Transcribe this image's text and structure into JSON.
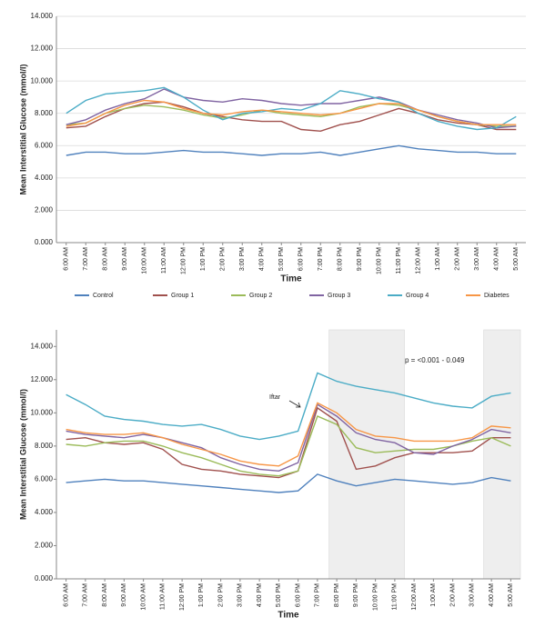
{
  "chart_data": [
    {
      "type": "line",
      "ylabel": "Mean Interstitial Glucose (mmol/l)",
      "xlabel": "Time",
      "categories": [
        "6:00 AM",
        "7:00 AM",
        "8:00 AM",
        "9:00 AM",
        "10:00 AM",
        "11:00 AM",
        "12:00 PM",
        "1:00 PM",
        "2:00 PM",
        "3:00 PM",
        "4:00 PM",
        "5:00 PM",
        "6:00 PM",
        "7:00 PM",
        "8:00 PM",
        "9:00 PM",
        "10:00 PM",
        "11:00 PM",
        "12:00 AM",
        "1:00 AM",
        "2:00 AM",
        "3:00 AM",
        "4:00 AM",
        "5:00 AM"
      ],
      "ylim": [
        0,
        14
      ],
      "yticks": [
        {
          "value": 0,
          "label": "0.000"
        },
        {
          "value": 2,
          "label": "2.000"
        },
        {
          "value": 4,
          "label": "4.000"
        },
        {
          "value": 6,
          "label": "6.000"
        },
        {
          "value": 8,
          "label": "8.000"
        },
        {
          "value": 10,
          "label": "10.000"
        },
        {
          "value": 12,
          "label": "12.000"
        },
        {
          "value": 14,
          "label": "14.000"
        }
      ],
      "grid": true,
      "legend": "bottom",
      "series": [
        {
          "name": "Control",
          "color": "#4f81bd",
          "values": [
            5.4,
            5.6,
            5.6,
            5.5,
            5.5,
            5.6,
            5.7,
            5.6,
            5.6,
            5.5,
            5.4,
            5.5,
            5.5,
            5.6,
            5.4,
            5.6,
            5.8,
            6.0,
            5.8,
            5.7,
            5.6,
            5.6,
            5.5,
            5.5
          ]
        },
        {
          "name": "Group 1",
          "color": "#a0504d",
          "values": [
            7.1,
            7.2,
            7.8,
            8.3,
            8.6,
            8.7,
            8.4,
            8.0,
            7.8,
            7.6,
            7.5,
            7.5,
            7.0,
            6.9,
            7.3,
            7.5,
            7.9,
            8.3,
            8.0,
            7.6,
            7.4,
            7.3,
            7.0,
            7.0
          ]
        },
        {
          "name": "Group 2",
          "color": "#9bbb59",
          "values": [
            7.3,
            7.4,
            8.0,
            8.3,
            8.5,
            8.4,
            8.2,
            7.9,
            7.7,
            7.9,
            8.2,
            8.0,
            7.9,
            7.8,
            8.0,
            8.4,
            8.6,
            8.5,
            8.2,
            7.8,
            7.5,
            7.3,
            7.2,
            7.2
          ]
        },
        {
          "name": "Group 3",
          "color": "#8064a2",
          "values": [
            7.3,
            7.6,
            8.2,
            8.6,
            8.9,
            9.5,
            9.0,
            8.8,
            8.7,
            8.9,
            8.8,
            8.6,
            8.5,
            8.6,
            8.6,
            8.8,
            9.0,
            8.7,
            8.2,
            7.9,
            7.6,
            7.4,
            7.1,
            7.2
          ]
        },
        {
          "name": "Group 4",
          "color": "#4bacc6",
          "values": [
            8.0,
            8.8,
            9.2,
            9.3,
            9.4,
            9.6,
            9.0,
            8.2,
            7.6,
            8.0,
            8.1,
            8.3,
            8.2,
            8.6,
            9.4,
            9.2,
            8.9,
            8.7,
            8.0,
            7.5,
            7.2,
            7.0,
            7.1,
            7.8
          ]
        },
        {
          "name": "Diabetes",
          "color": "#f79646",
          "values": [
            7.2,
            7.4,
            8.0,
            8.5,
            8.8,
            8.7,
            8.3,
            8.0,
            7.9,
            8.1,
            8.2,
            8.1,
            8.0,
            7.9,
            8.0,
            8.3,
            8.6,
            8.6,
            8.2,
            7.8,
            7.5,
            7.3,
            7.3,
            7.3
          ]
        }
      ]
    },
    {
      "type": "line",
      "ylabel": "Mean Interstitial Glucose (mmol/l)",
      "xlabel": "Time",
      "categories": [
        "6:00 AM",
        "7:00 AM",
        "8:00 AM",
        "9:00 AM",
        "10:00 AM",
        "11:00 AM",
        "12:00 PM",
        "1:00 PM",
        "2:00 PM",
        "3:00 PM",
        "4:00 PM",
        "5:00 PM",
        "6:00 PM",
        "7:00 PM",
        "8:00 PM",
        "9:00 PM",
        "10:00 PM",
        "11:00 PM",
        "12:00 AM",
        "1:00 AM",
        "2:00 AM",
        "3:00 AM",
        "4:00 AM",
        "5:00 AM"
      ],
      "ylim": [
        0,
        15
      ],
      "yticks": [
        {
          "value": 0,
          "label": "0.000"
        },
        {
          "value": 2,
          "label": "2.000"
        },
        {
          "value": 4,
          "label": "4.000"
        },
        {
          "value": 6,
          "label": "6.000"
        },
        {
          "value": 8,
          "label": "8.000"
        },
        {
          "value": 10,
          "label": "10.000"
        },
        {
          "value": 12,
          "label": "12.000"
        },
        {
          "value": 14,
          "label": "14.000"
        }
      ],
      "grid": false,
      "shaded": [
        {
          "from": "8:00 PM",
          "to": "11:00 PM"
        },
        {
          "from": "4:00 AM",
          "to": "5:00 AM"
        }
      ],
      "annotations": [
        "Iftar",
        "p = <0.001 - 0.049"
      ],
      "series": [
        {
          "color": "#4f81bd",
          "values": [
            5.8,
            5.9,
            6.0,
            5.9,
            5.9,
            5.8,
            5.7,
            5.6,
            5.5,
            5.4,
            5.3,
            5.2,
            5.3,
            6.3,
            5.9,
            5.6,
            5.8,
            6.0,
            5.9,
            5.8,
            5.7,
            5.8,
            6.1,
            5.9
          ]
        },
        {
          "color": "#a0504d",
          "values": [
            8.4,
            8.5,
            8.2,
            8.1,
            8.2,
            7.8,
            6.9,
            6.6,
            6.5,
            6.3,
            6.2,
            6.1,
            6.5,
            10.3,
            9.5,
            6.6,
            6.8,
            7.3,
            7.6,
            7.6,
            7.6,
            7.7,
            8.5,
            8.5
          ]
        },
        {
          "color": "#9bbb59",
          "values": [
            8.1,
            8.0,
            8.2,
            8.3,
            8.3,
            8.0,
            7.6,
            7.3,
            6.9,
            6.5,
            6.3,
            6.2,
            6.5,
            9.8,
            9.3,
            7.9,
            7.6,
            7.7,
            7.8,
            7.8,
            8.0,
            8.3,
            8.5,
            8.0
          ]
        },
        {
          "color": "#8064a2",
          "values": [
            8.9,
            8.7,
            8.6,
            8.5,
            8.7,
            8.5,
            8.2,
            7.9,
            7.3,
            6.9,
            6.6,
            6.5,
            7.0,
            10.5,
            9.8,
            8.8,
            8.4,
            8.2,
            7.6,
            7.5,
            8.0,
            8.4,
            9.0,
            8.8
          ]
        },
        {
          "color": "#4bacc6",
          "values": [
            11.1,
            10.5,
            9.8,
            9.6,
            9.5,
            9.3,
            9.2,
            9.3,
            9.0,
            8.6,
            8.4,
            8.6,
            8.9,
            12.4,
            11.9,
            11.6,
            11.4,
            11.2,
            10.9,
            10.6,
            10.4,
            10.3,
            11.0,
            11.2
          ]
        },
        {
          "color": "#f79646",
          "values": [
            9.0,
            8.8,
            8.7,
            8.7,
            8.8,
            8.5,
            8.1,
            7.8,
            7.5,
            7.1,
            6.9,
            6.8,
            7.4,
            10.6,
            10.0,
            9.0,
            8.6,
            8.5,
            8.3,
            8.3,
            8.3,
            8.5,
            9.2,
            9.1
          ]
        }
      ]
    }
  ]
}
